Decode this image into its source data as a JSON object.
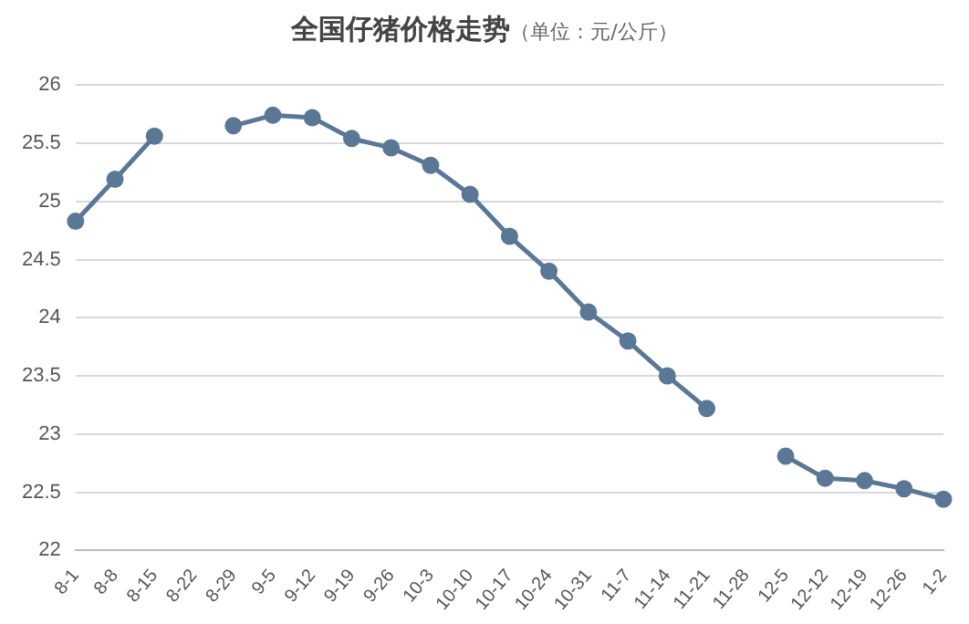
{
  "chart_data": {
    "type": "line",
    "title": "全国仔猪价格走势",
    "subtitle": "（单位：元/公斤）",
    "categories": [
      "8-1",
      "8-8",
      "8-15",
      "8-22",
      "8-29",
      "9-5",
      "9-12",
      "9-19",
      "9-26",
      "10-3",
      "10-10",
      "10-17",
      "10-24",
      "10-31",
      "11-7",
      "11-14",
      "11-21",
      "11-28",
      "12-5",
      "12-12",
      "12-19",
      "12-26",
      "1-2"
    ],
    "series": [
      {
        "color": "#5a7896",
        "values": [
          24.83,
          25.19,
          25.56,
          null,
          25.65,
          25.74,
          25.72,
          25.54,
          25.46,
          25.31,
          25.06,
          24.7,
          24.4,
          24.05,
          23.8,
          23.5,
          23.22,
          null,
          22.81,
          22.62,
          22.6,
          22.53,
          22.44
        ]
      }
    ],
    "ylim": [
      22,
      26
    ],
    "yticks": [
      22,
      22.5,
      23,
      23.5,
      24,
      24.5,
      25,
      25.5,
      26
    ],
    "grid": "y",
    "legend": false,
    "marker": "circle",
    "line_style": "solid"
  }
}
